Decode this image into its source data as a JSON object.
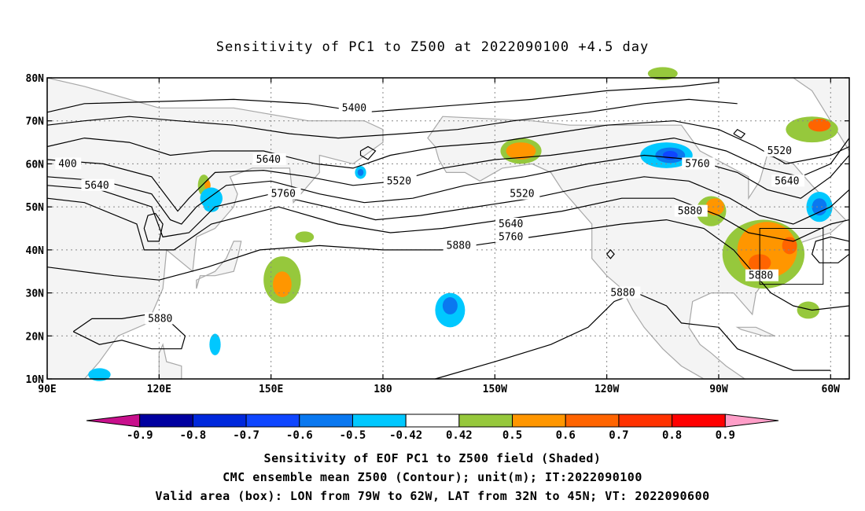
{
  "title": "Sensitivity of PC1 to Z500 at 2022090100 +4.5 day",
  "chart_data": {
    "type": "heatmap",
    "map": {
      "lon_range": [
        90,
        305
      ],
      "lat_range": [
        10,
        80
      ],
      "x_ticks": [
        "90E",
        "120E",
        "150E",
        "180",
        "150W",
        "120W",
        "90W",
        "60W"
      ],
      "y_ticks": [
        "80N",
        "70N",
        "60N",
        "50N",
        "40N",
        "30N",
        "20N",
        "10N"
      ],
      "grid": "dotted"
    },
    "colorbar": {
      "levels": [
        "-0.9",
        "-0.8",
        "-0.7",
        "-0.6",
        "-0.5",
        "-0.42",
        "0.42",
        "0.5",
        "0.6",
        "0.7",
        "0.8",
        "0.9"
      ],
      "colors": [
        "#c8108c",
        "#0000a0",
        "#0028dc",
        "#0f46ff",
        "#0a78f0",
        "#00c8ff",
        "#ffffff",
        "#96c83c",
        "#ff9600",
        "#ff6400",
        "#ff3200",
        "#ff0000",
        "#ff9ec8"
      ]
    },
    "contour_labels": [
      {
        "text": "5400",
        "lon": 169,
        "lat": 73
      },
      {
        "text": "400",
        "lon": 93,
        "lat": 60
      },
      {
        "text": "5640",
        "lon": 146,
        "lat": 61
      },
      {
        "text": "5640",
        "lon": 100,
        "lat": 55
      },
      {
        "text": "5760",
        "lon": 150,
        "lat": 53
      },
      {
        "text": "5520",
        "lon": 181,
        "lat": 56
      },
      {
        "text": "5520",
        "lon": 214,
        "lat": 53
      },
      {
        "text": "5640",
        "lon": 211,
        "lat": 46
      },
      {
        "text": "5760",
        "lon": 211,
        "lat": 43
      },
      {
        "text": "5880",
        "lon": 197,
        "lat": 41
      },
      {
        "text": "5760",
        "lon": 261,
        "lat": 60
      },
      {
        "text": "5520",
        "lon": 283,
        "lat": 63
      },
      {
        "text": "5640",
        "lon": 285,
        "lat": 56
      },
      {
        "text": "5880",
        "lon": 259,
        "lat": 49
      },
      {
        "text": "5880",
        "lon": 278,
        "lat": 34
      },
      {
        "text": "5880",
        "lon": 241,
        "lat": 30
      },
      {
        "text": "5880",
        "lon": 117,
        "lat": 24
      }
    ],
    "valid_box": {
      "lon": [
        281,
        298
      ],
      "lat": [
        32,
        45
      ]
    }
  },
  "captions": [
    "Sensitivity of EOF PC1 to Z500 field (Shaded)",
    "CMC ensemble mean Z500 (Contour); unit(m); IT:2022090100",
    "Valid area (box): LON from 79W to 62W, LAT from 32N to 45N; VT: 2022090600"
  ]
}
